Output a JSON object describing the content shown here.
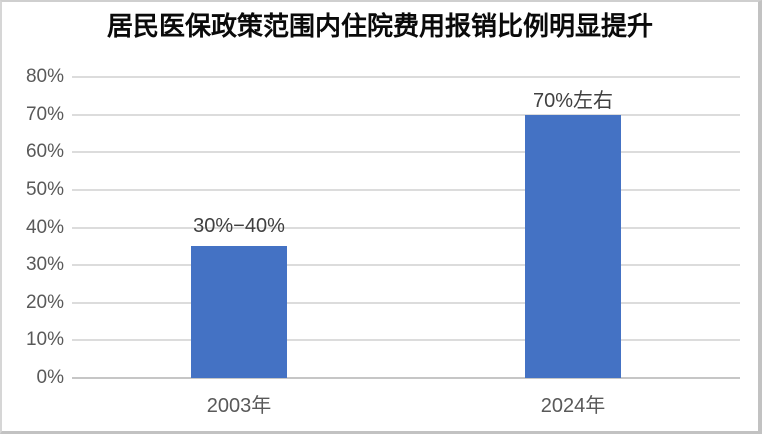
{
  "chart_data": {
    "type": "bar",
    "title": "居民医保政策范围内住院费用报销比例明显提升",
    "categories": [
      "2003年",
      "2024年"
    ],
    "values": [
      35,
      70
    ],
    "data_labels": [
      "30%−40%",
      "70%左右"
    ],
    "series_name": "",
    "xlabel": "",
    "ylabel": "",
    "ylim": [
      0,
      80
    ],
    "ytick_step": 10,
    "ytick_labels": [
      "0%",
      "10%",
      "20%",
      "30%",
      "40%",
      "50%",
      "60%",
      "70%",
      "80%"
    ],
    "grid": true,
    "legend_visible": false,
    "colors": {
      "bar": "#4472C4",
      "gridline": "#DCDCDC",
      "axis_line": "#C6C6C6",
      "tick_label": "#595959",
      "data_label": "#404040",
      "title": "#0A0A0A",
      "background": "#FFFFFF"
    }
  }
}
